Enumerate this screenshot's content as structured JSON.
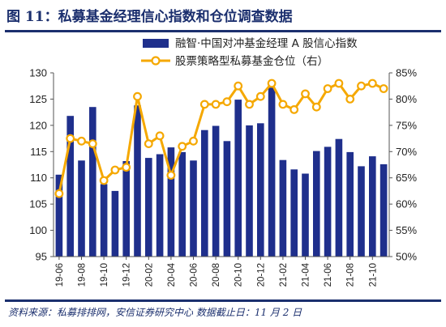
{
  "title": "图 11：私募基金经理信心指数和仓位调查数据",
  "source": "资料来源：私募排排网，安信证券研究中心   数据截止日：11 月 2 日",
  "chart_data": {
    "type": "bar+line",
    "categories": [
      "19-06",
      "19-07",
      "19-08",
      "19-09",
      "19-10",
      "19-11",
      "19-12",
      "20-01",
      "20-02",
      "20-03",
      "20-04",
      "20-05",
      "20-06",
      "20-07",
      "20-08",
      "20-09",
      "20-10",
      "20-11",
      "20-12",
      "21-01",
      "21-02",
      "21-03",
      "21-04",
      "21-05",
      "21-06",
      "21-07",
      "21-08",
      "21-09",
      "21-10",
      "21-11"
    ],
    "x_tick_labels": [
      "19-06",
      "19-08",
      "19-10",
      "19-12",
      "20-02",
      "20-04",
      "20-06",
      "20-08",
      "20-10",
      "20-12",
      "21-02",
      "21-04",
      "21-06",
      "21-08",
      "21-10"
    ],
    "series": [
      {
        "name": "融智·中国对冲基金经理 A 股信心指数",
        "type": "bar",
        "axis": "left",
        "color": "#1f2f8c",
        "values": [
          110.6,
          121.8,
          113.3,
          123.5,
          108.8,
          107.5,
          113.2,
          123.8,
          113.8,
          114.5,
          115.8,
          114.9,
          113.3,
          119.1,
          119.9,
          117.0,
          124.9,
          120.0,
          120.4,
          127.2,
          113.4,
          111.6,
          110.8,
          115.1,
          115.9,
          117.4,
          114.9,
          112.2,
          114.1,
          112.6
        ]
      },
      {
        "name": "股票策略型私募基金仓位（右）",
        "type": "line",
        "axis": "right",
        "color": "#f5a800",
        "values": [
          62.0,
          72.5,
          72.0,
          71.5,
          64.5,
          66.5,
          67.0,
          80.5,
          71.5,
          73.0,
          65.5,
          71.0,
          72.0,
          79.0,
          79.0,
          79.5,
          82.5,
          79.0,
          80.5,
          83.0,
          79.0,
          78.0,
          81.0,
          78.5,
          82.0,
          83.0,
          80.0,
          82.5,
          83.0,
          82.0
        ]
      }
    ],
    "ylim_left": [
      95,
      130
    ],
    "yticks_left": [
      95,
      100,
      105,
      110,
      115,
      120,
      125,
      130
    ],
    "ylim_right": [
      50,
      85
    ],
    "yticks_right": [
      "50%",
      "55%",
      "60%",
      "65%",
      "70%",
      "75%",
      "80%",
      "85%"
    ],
    "legend_position": "top-right",
    "grid": false
  }
}
